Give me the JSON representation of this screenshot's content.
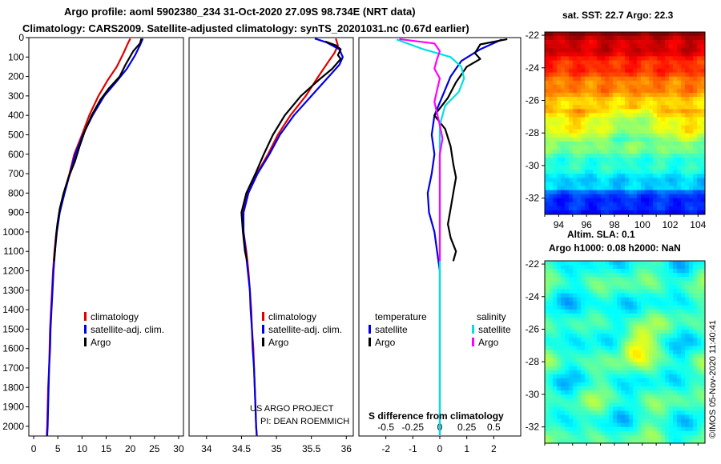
{
  "title": {
    "line1": "Argo profile: aoml 5902380_234 31-Oct-2020 27.09S 98.734E (NRT data)",
    "line2": "Climatology: CARS2009. Satellite-adjusted climatology: synTS_20201031.nc (0.67d earlier)"
  },
  "colors": {
    "climatology": "#e00000",
    "satellite_adj": "#0000e6",
    "argo": "#000000",
    "sal_satellite": "#00e0e0",
    "sal_argo": "#ff00ff"
  },
  "credits": {
    "project": "US ARGO PROJECT",
    "pi": "PI: DEAN ROEMMICH",
    "imos": "©IMOS 05-Nov-2020 11:40:41"
  },
  "chart_data": [
    {
      "id": "temperature",
      "type": "line",
      "xlim": [
        -1,
        31
      ],
      "ylim": [
        2050,
        0
      ],
      "xticks": [
        0,
        5,
        10,
        15,
        20,
        25,
        30
      ],
      "yticks": [
        0,
        100,
        200,
        300,
        400,
        500,
        600,
        700,
        800,
        900,
        1000,
        1100,
        1200,
        1300,
        1400,
        1500,
        1600,
        1700,
        1800,
        1900,
        2000
      ],
      "legend": [
        "climatology",
        "satellite-adj. clim.",
        "Argo"
      ],
      "series": [
        {
          "name": "climatology",
          "color_key": "climatology",
          "points": [
            [
              20.0,
              5
            ],
            [
              19.5,
              30
            ],
            [
              18.6,
              80
            ],
            [
              17.2,
              150
            ],
            [
              15.3,
              220
            ],
            [
              13.4,
              300
            ],
            [
              11.5,
              400
            ],
            [
              10.0,
              500
            ],
            [
              8.4,
              600
            ],
            [
              7.4,
              700
            ],
            [
              6.3,
              800
            ],
            [
              5.3,
              900
            ],
            [
              4.7,
              1000
            ],
            [
              4.3,
              1100
            ],
            [
              4.0,
              1200
            ],
            [
              3.8,
              1300
            ],
            [
              3.6,
              1400
            ],
            [
              3.4,
              1500
            ],
            [
              3.3,
              1600
            ],
            [
              3.2,
              1700
            ],
            [
              3.0,
              1800
            ],
            [
              2.9,
              1900
            ],
            [
              2.8,
              2000
            ],
            [
              2.7,
              2050
            ]
          ]
        },
        {
          "name": "satellite-adj. clim.",
          "color_key": "satellite_adj",
          "points": [
            [
              22.6,
              5
            ],
            [
              22.0,
              40
            ],
            [
              21.0,
              90
            ],
            [
              19.3,
              160
            ],
            [
              17.0,
              230
            ],
            [
              14.6,
              300
            ],
            [
              12.2,
              400
            ],
            [
              10.2,
              500
            ],
            [
              8.6,
              600
            ],
            [
              7.5,
              700
            ],
            [
              6.4,
              800
            ],
            [
              5.4,
              900
            ],
            [
              4.8,
              1000
            ],
            [
              4.4,
              1100
            ],
            [
              4.1,
              1200
            ],
            [
              3.9,
              1300
            ],
            [
              3.7,
              1400
            ],
            [
              3.5,
              1500
            ],
            [
              3.4,
              1600
            ],
            [
              3.2,
              1700
            ],
            [
              3.1,
              1800
            ],
            [
              3.0,
              1900
            ],
            [
              2.9,
              2000
            ],
            [
              2.8,
              2050
            ]
          ]
        },
        {
          "name": "Argo",
          "color_key": "argo",
          "points": [
            [
              22.3,
              5
            ],
            [
              22.0,
              30
            ],
            [
              20.6,
              70
            ],
            [
              19.0,
              140
            ],
            [
              17.8,
              200
            ],
            [
              15.6,
              260
            ],
            [
              13.8,
              320
            ],
            [
              12.0,
              400
            ],
            [
              10.6,
              480
            ],
            [
              9.5,
              560
            ],
            [
              8.5,
              640
            ],
            [
              7.2,
              720
            ],
            [
              6.2,
              800
            ],
            [
              5.4,
              880
            ],
            [
              4.9,
              960
            ],
            [
              4.6,
              1030
            ],
            [
              4.4,
              1100
            ],
            [
              4.2,
              1150
            ]
          ]
        }
      ]
    },
    {
      "id": "salinity",
      "type": "line",
      "xlim": [
        33.75,
        36.1
      ],
      "ylim": [
        2050,
        0
      ],
      "xticks": [
        34,
        34.5,
        35,
        35.5,
        36
      ],
      "xticklabels": [
        "34",
        "34.5",
        "35",
        "35.5",
        "36"
      ],
      "legend": [
        "climatology",
        "satellite-adj. clim.",
        "Argo"
      ],
      "series": [
        {
          "name": "climatology",
          "color_key": "climatology",
          "points": [
            [
              35.85,
              5
            ],
            [
              35.88,
              40
            ],
            [
              35.83,
              80
            ],
            [
              35.75,
              120
            ],
            [
              35.6,
              200
            ],
            [
              35.42,
              300
            ],
            [
              35.2,
              400
            ],
            [
              35.02,
              500
            ],
            [
              34.88,
              600
            ],
            [
              34.72,
              700
            ],
            [
              34.58,
              800
            ],
            [
              34.52,
              900
            ],
            [
              34.53,
              1000
            ],
            [
              34.57,
              1100
            ],
            [
              34.6,
              1200
            ],
            [
              34.62,
              1300
            ],
            [
              34.64,
              1400
            ],
            [
              34.65,
              1500
            ],
            [
              34.67,
              1600
            ],
            [
              34.68,
              1700
            ],
            [
              34.69,
              1800
            ],
            [
              34.7,
              1900
            ],
            [
              34.71,
              2000
            ],
            [
              34.72,
              2050
            ]
          ]
        },
        {
          "name": "satellite-adj. clim.",
          "color_key": "satellite_adj",
          "points": [
            [
              35.55,
              5
            ],
            [
              35.72,
              25
            ],
            [
              35.9,
              60
            ],
            [
              35.95,
              100
            ],
            [
              35.9,
              140
            ],
            [
              35.75,
              200
            ],
            [
              35.5,
              300
            ],
            [
              35.25,
              400
            ],
            [
              35.05,
              500
            ],
            [
              34.9,
              600
            ],
            [
              34.73,
              700
            ],
            [
              34.6,
              800
            ],
            [
              34.53,
              900
            ],
            [
              34.53,
              1000
            ],
            [
              34.56,
              1100
            ],
            [
              34.59,
              1200
            ],
            [
              34.62,
              1300
            ],
            [
              34.63,
              1400
            ],
            [
              34.65,
              1500
            ],
            [
              34.66,
              1600
            ],
            [
              34.68,
              1700
            ],
            [
              34.69,
              1800
            ],
            [
              34.7,
              1900
            ],
            [
              34.71,
              2000
            ],
            [
              34.72,
              2050
            ]
          ]
        },
        {
          "name": "Argo",
          "color_key": "argo",
          "points": [
            [
              35.7,
              20
            ],
            [
              35.85,
              40
            ],
            [
              35.92,
              60
            ],
            [
              35.88,
              90
            ],
            [
              35.92,
              110
            ],
            [
              35.8,
              160
            ],
            [
              35.6,
              220
            ],
            [
              35.35,
              300
            ],
            [
              35.12,
              400
            ],
            [
              34.95,
              500
            ],
            [
              34.82,
              600
            ],
            [
              34.7,
              700
            ],
            [
              34.57,
              800
            ],
            [
              34.5,
              900
            ],
            [
              34.52,
              1000
            ],
            [
              34.55,
              1100
            ],
            [
              34.58,
              1150
            ]
          ]
        }
      ]
    },
    {
      "id": "difference",
      "type": "line",
      "xlim": [
        -3.0,
        3.0
      ],
      "ylim": [
        2050,
        0
      ],
      "xticks": [
        -2,
        -1,
        0,
        1,
        2
      ],
      "salinity_tick_labels": [
        "-0.5",
        "-0.25",
        "0",
        "0.25",
        "0.5"
      ],
      "xlabel": "S difference from climatology",
      "legend_groups": [
        {
          "heading": "temperature",
          "items": [
            "satellite",
            "Argo"
          ]
        },
        {
          "heading": "salinity",
          "items": [
            "satellite",
            "Argo"
          ]
        }
      ],
      "series": [
        {
          "name": "temperature satellite",
          "color_key": "satellite_adj",
          "points": [
            [
              2.3,
              10
            ],
            [
              1.5,
              60
            ],
            [
              0.8,
              120
            ],
            [
              0.4,
              200
            ],
            [
              0.1,
              300
            ],
            [
              -0.2,
              400
            ],
            [
              -0.3,
              500
            ],
            [
              -0.2,
              600
            ],
            [
              -0.3,
              700
            ],
            [
              -0.45,
              800
            ],
            [
              -0.4,
              900
            ],
            [
              -0.2,
              1000
            ],
            [
              -0.1,
              1100
            ],
            [
              0,
              1200
            ],
            [
              0,
              1400
            ],
            [
              0,
              1600
            ],
            [
              0,
              1800
            ],
            [
              0,
              2050
            ]
          ]
        },
        {
          "name": "temperature Argo",
          "color_key": "argo",
          "points": [
            [
              2.5,
              8
            ],
            [
              1.5,
              35
            ],
            [
              1.3,
              80
            ],
            [
              1.5,
              110
            ],
            [
              1.0,
              150
            ],
            [
              0.6,
              230
            ],
            [
              0.3,
              310
            ],
            [
              -0.2,
              400
            ],
            [
              0.2,
              470
            ],
            [
              0.4,
              560
            ],
            [
              0.5,
              650
            ],
            [
              0.6,
              720
            ],
            [
              0.5,
              800
            ],
            [
              0.4,
              880
            ],
            [
              0.3,
              960
            ],
            [
              0.4,
              1030
            ],
            [
              0.6,
              1100
            ],
            [
              0.5,
              1150
            ]
          ]
        },
        {
          "name": "salinity satellite",
          "color_key": "sal_satellite",
          "points": [
            [
              -1.6,
              10
            ],
            [
              -0.6,
              60
            ],
            [
              0.4,
              100
            ],
            [
              0.8,
              150
            ],
            [
              0.9,
              210
            ],
            [
              0.7,
              280
            ],
            [
              0.2,
              350
            ],
            [
              0,
              450
            ],
            [
              0,
              600
            ],
            [
              0,
              800
            ],
            [
              0,
              1000
            ],
            [
              0,
              1200
            ],
            [
              0,
              1400
            ],
            [
              0,
              1600
            ],
            [
              0,
              1800
            ],
            [
              0,
              2050
            ]
          ]
        },
        {
          "name": "salinity Argo",
          "color_key": "sal_argo",
          "points": [
            [
              -1.5,
              8
            ],
            [
              -0.2,
              30
            ],
            [
              0,
              70
            ],
            [
              -0.1,
              110
            ],
            [
              -0.2,
              160
            ],
            [
              0,
              210
            ],
            [
              -0.1,
              270
            ],
            [
              -0.2,
              330
            ],
            [
              -0.1,
              390
            ],
            [
              0,
              450
            ],
            [
              0.1,
              520
            ],
            [
              0,
              600
            ],
            [
              0,
              700
            ],
            [
              0,
              800
            ],
            [
              0,
              900
            ],
            [
              0,
              1000
            ],
            [
              0,
              1100
            ],
            [
              0,
              1150
            ]
          ]
        }
      ]
    },
    {
      "id": "sst_map",
      "type": "heatmap",
      "title": "sat. SST: 22.7 Argo: 22.3",
      "xticks": [
        94,
        96,
        98,
        100,
        102,
        104
      ],
      "yticks": [
        -22,
        -24,
        -26,
        -28,
        -30,
        -32
      ],
      "xlim": [
        93,
        104.5
      ],
      "ylim": [
        -33,
        -21.8
      ]
    },
    {
      "id": "sla_map",
      "type": "heatmap",
      "title": "Altim. SLA: 0.1",
      "subtitle": "Argo h1000: 0.08 h2000: NaN",
      "yticks": [
        -22,
        -24,
        -26,
        -28,
        -30,
        -32
      ],
      "xlim": [
        93,
        104.5
      ],
      "ylim": [
        -33,
        -21.8
      ]
    }
  ]
}
